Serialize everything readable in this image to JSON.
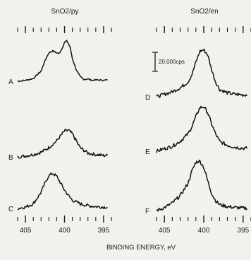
{
  "chart_data": [
    {
      "type": "line",
      "title": "SnO2/py",
      "xlabel": "BINDING ENERGY, eV",
      "ylabel": "",
      "x_reversed": true,
      "xlim": [
        406,
        394
      ],
      "xticks": [
        "405",
        "400",
        "395"
      ],
      "series": [
        {
          "name": "A",
          "x": [
            406,
            405,
            404,
            403,
            402.5,
            402,
            401.5,
            401,
            400.7,
            400.3,
            400,
            399.7,
            399.3,
            399,
            398.5,
            398,
            397.5,
            397,
            396.5,
            396,
            395,
            394.5
          ],
          "y": [
            0.0,
            0.02,
            0.06,
            0.22,
            0.45,
            0.62,
            0.66,
            0.62,
            0.6,
            0.72,
            0.85,
            0.88,
            0.75,
            0.5,
            0.25,
            0.1,
            0.04,
            0.05,
            0.02,
            0.03,
            0.02,
            0.03
          ]
        },
        {
          "name": "B",
          "x": [
            406,
            405,
            404,
            403,
            402,
            401,
            400.5,
            400,
            399.5,
            399,
            398.5,
            398,
            397,
            396,
            395,
            394.5
          ],
          "y": [
            0.0,
            0.02,
            0.05,
            0.1,
            0.2,
            0.35,
            0.46,
            0.56,
            0.58,
            0.5,
            0.35,
            0.2,
            0.08,
            0.05,
            0.03,
            0.03
          ]
        },
        {
          "name": "C",
          "x": [
            406,
            405,
            404,
            403,
            402.5,
            402,
            401.5,
            401,
            400.5,
            400,
            399.5,
            399,
            398,
            397,
            396,
            395,
            394.5
          ],
          "y": [
            0.0,
            0.03,
            0.1,
            0.35,
            0.55,
            0.72,
            0.76,
            0.7,
            0.55,
            0.4,
            0.28,
            0.18,
            0.1,
            0.06,
            0.04,
            0.03,
            0.03
          ]
        }
      ]
    },
    {
      "type": "line",
      "title": "SnO2/en",
      "xlabel": "BINDING ENERGY, eV",
      "ylabel": "",
      "x_reversed": true,
      "xlim": [
        406,
        394
      ],
      "xticks": [
        "405",
        "400",
        "395"
      ],
      "scale_bar_label": "20,000cps",
      "series": [
        {
          "name": "D",
          "x": [
            406,
            405,
            404,
            403,
            402,
            401.5,
            401,
            400.5,
            400,
            399.5,
            399,
            398.5,
            398,
            397,
            396,
            395,
            394.5
          ],
          "y": [
            0.0,
            0.05,
            0.1,
            0.18,
            0.3,
            0.45,
            0.7,
            0.92,
            0.95,
            0.85,
            0.55,
            0.3,
            0.15,
            0.08,
            0.05,
            0.04,
            0.04
          ]
        },
        {
          "name": "E",
          "x": [
            406,
            405,
            404,
            403,
            402,
            401.5,
            401,
            400.5,
            400,
            399.5,
            399,
            398.5,
            398,
            397,
            396,
            395,
            394.5
          ],
          "y": [
            0.0,
            0.05,
            0.1,
            0.2,
            0.35,
            0.5,
            0.7,
            0.88,
            0.9,
            0.78,
            0.55,
            0.35,
            0.2,
            0.12,
            0.08,
            0.06,
            0.06
          ]
        },
        {
          "name": "F",
          "x": [
            406,
            405,
            404,
            403,
            402,
            401.5,
            401,
            400.5,
            400,
            399.5,
            399,
            398.5,
            398,
            397,
            396,
            395,
            394.5
          ],
          "y": [
            0.0,
            0.06,
            0.15,
            0.3,
            0.55,
            0.8,
            0.98,
            1.0,
            0.88,
            0.6,
            0.35,
            0.2,
            0.12,
            0.08,
            0.06,
            0.05,
            0.05
          ]
        }
      ]
    }
  ]
}
